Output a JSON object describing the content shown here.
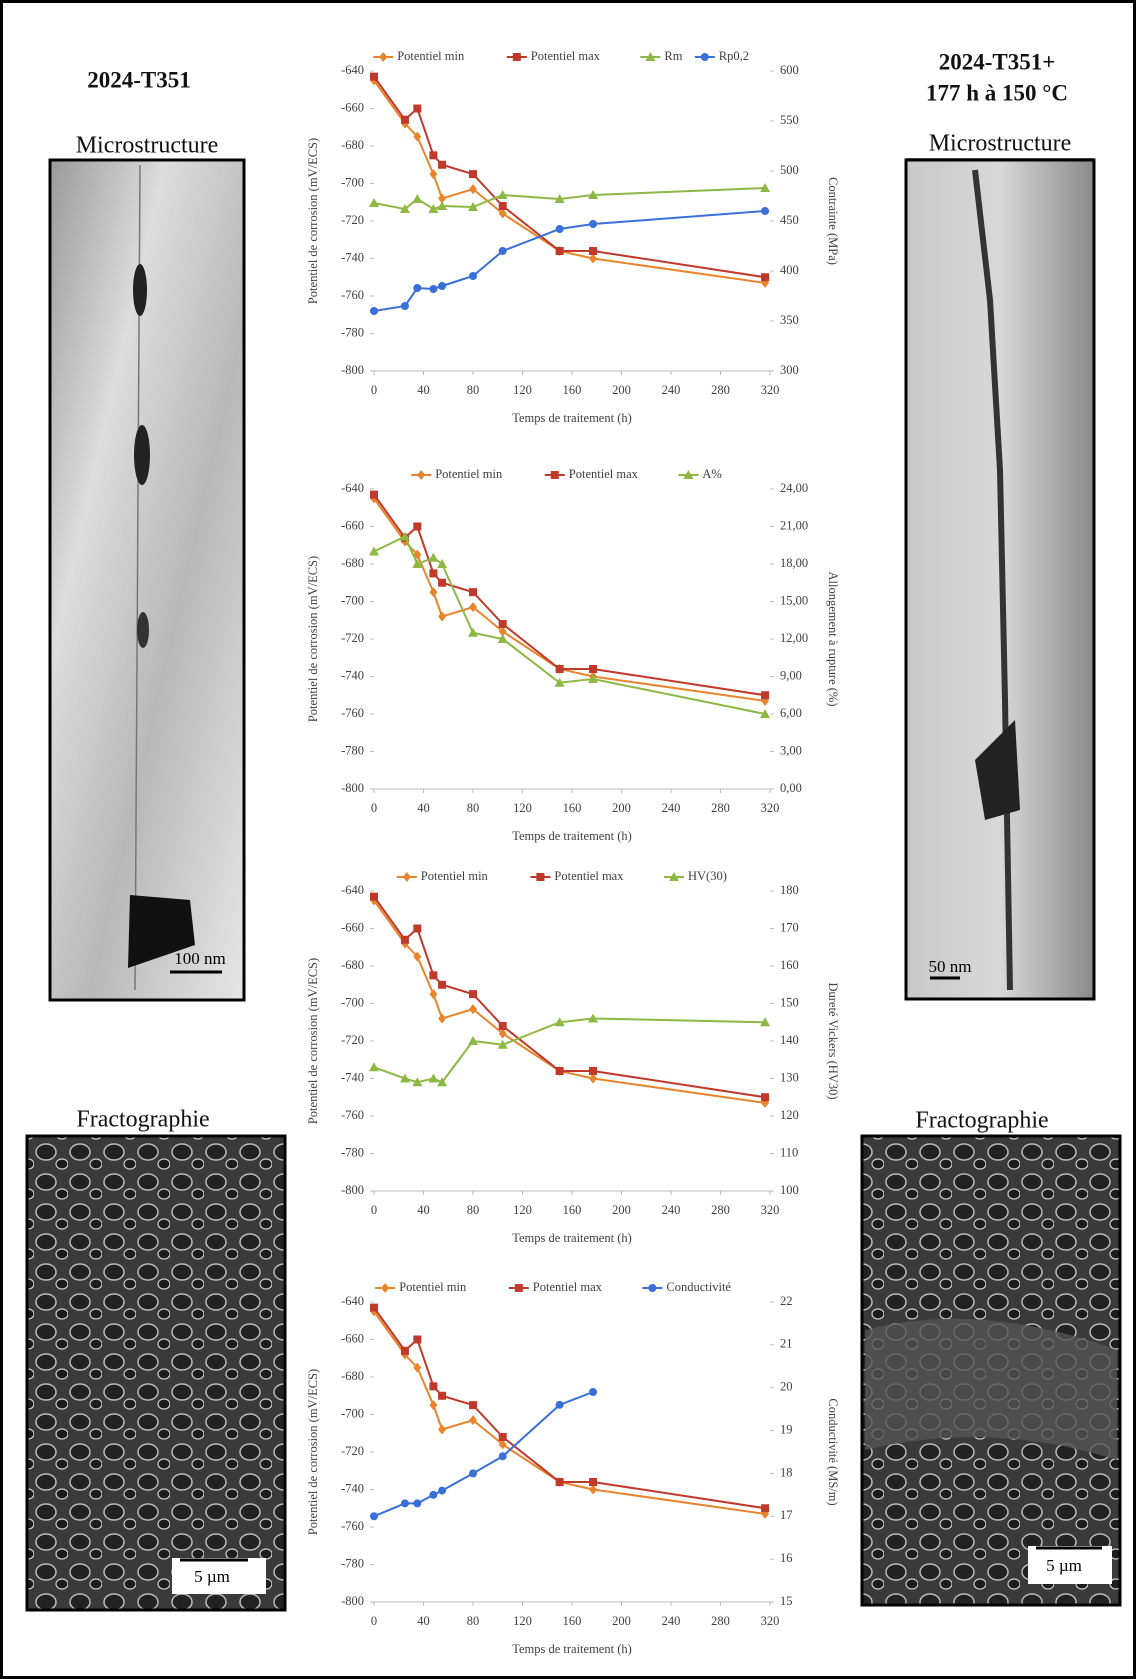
{
  "panels": {
    "left": {
      "title": "2024-T351",
      "microstructure": "Microstructure",
      "micro_scale": "100 nm",
      "fractography": "Fractographie",
      "frac_scale": "5 µm"
    },
    "right": {
      "title": "2024-T351+",
      "subtitle": "177 h à 150 °C",
      "microstructure": "Microstructure",
      "micro_scale": "50 nm",
      "fractography": "Fractographie",
      "frac_scale": "5 µm"
    }
  },
  "chart_data": [
    {
      "type": "line",
      "xlabel": "Temps de traitement (h)",
      "ylabel": "Potentiel de corrosion (mV/ECS)",
      "y2label": "Contrainte (MPa)",
      "x": [
        0,
        25,
        35,
        48,
        55,
        80,
        104,
        150,
        177,
        316
      ],
      "xlim": [
        0,
        320
      ],
      "xticks": [
        0,
        40,
        80,
        120,
        160,
        200,
        240,
        280,
        320
      ],
      "ylim": [
        -800,
        -640
      ],
      "yticks": [
        -800,
        -780,
        -760,
        -740,
        -720,
        -700,
        -680,
        -660,
        -640
      ],
      "y2lim": [
        300,
        600
      ],
      "y2ticks": [
        300,
        350,
        400,
        450,
        500,
        550,
        600
      ],
      "series": [
        {
          "name": "Potentiel min",
          "color": "#e8842c",
          "marker": "diamond",
          "values": [
            -645,
            -668,
            -675,
            -695,
            -708,
            -703,
            -716,
            -736,
            -740,
            -753
          ]
        },
        {
          "name": "Potentiel max",
          "color": "#c0392b",
          "marker": "square",
          "values": [
            -643,
            -666,
            -660,
            -685,
            -690,
            -695,
            -712,
            -736,
            -736,
            -750
          ]
        },
        {
          "name": "Rm",
          "color": "#8db843",
          "marker": "triangle",
          "axis": "y2",
          "values": [
            468,
            462,
            472,
            462,
            465,
            464,
            476,
            472,
            476,
            483
          ]
        },
        {
          "name": "Rp0,2",
          "color": "#3a6fd8",
          "marker": "circle",
          "axis": "y2",
          "values": [
            360,
            365,
            383,
            382,
            385,
            395,
            420,
            442,
            447,
            460
          ]
        }
      ]
    },
    {
      "type": "line",
      "xlabel": "Temps de traitement (h)",
      "ylabel": "Potentiel de corrosion (mV/ECS)",
      "y2label": "Allongement à rupture (%)",
      "x": [
        0,
        25,
        35,
        48,
        55,
        80,
        104,
        150,
        177,
        316
      ],
      "xlim": [
        0,
        320
      ],
      "xticks": [
        0,
        40,
        80,
        120,
        160,
        200,
        240,
        280,
        320
      ],
      "ylim": [
        -800,
        -640
      ],
      "yticks": [
        -800,
        -780,
        -760,
        -740,
        -720,
        -700,
        -680,
        -660,
        -640
      ],
      "y2lim": [
        0,
        24
      ],
      "y2ticks": [
        {
          "value": 0,
          "label": "0,00"
        },
        {
          "value": 3,
          "label": "3,00"
        },
        {
          "value": 6,
          "label": "6,00"
        },
        {
          "value": 9,
          "label": "9,00"
        },
        {
          "value": 12,
          "label": "12,00"
        },
        {
          "value": 15,
          "label": "15,00"
        },
        {
          "value": 18,
          "label": "18,00"
        },
        {
          "value": 21,
          "label": "21,00"
        },
        {
          "value": 24,
          "label": "24,00"
        }
      ],
      "series": [
        {
          "name": "Potentiel min",
          "color": "#e8842c",
          "marker": "diamond",
          "values": [
            -645,
            -668,
            -675,
            -695,
            -708,
            -703,
            -716,
            -736,
            -740,
            -753
          ]
        },
        {
          "name": "Potentiel max",
          "color": "#c0392b",
          "marker": "square",
          "values": [
            -643,
            -666,
            -660,
            -685,
            -690,
            -695,
            -712,
            -736,
            -736,
            -750
          ]
        },
        {
          "name": "A%",
          "color": "#8db843",
          "marker": "triangle",
          "axis": "y2",
          "values": [
            19,
            20.2,
            18,
            18.5,
            18,
            12.5,
            12,
            8.5,
            8.8,
            6
          ]
        }
      ]
    },
    {
      "type": "line",
      "xlabel": "Temps de traitement (h)",
      "ylabel": "Potentiel de corrosion (mV/ECS)",
      "y2label": "Dureté Vickers (HV30)",
      "x": [
        0,
        25,
        35,
        48,
        55,
        80,
        104,
        150,
        177,
        316
      ],
      "xlim": [
        0,
        320
      ],
      "xticks": [
        0,
        40,
        80,
        120,
        160,
        200,
        240,
        280,
        320
      ],
      "ylim": [
        -800,
        -640
      ],
      "yticks": [
        -800,
        -780,
        -760,
        -740,
        -720,
        -700,
        -680,
        -660,
        -640
      ],
      "y2lim": [
        100,
        180
      ],
      "y2ticks": [
        100,
        110,
        120,
        130,
        140,
        150,
        160,
        170,
        180
      ],
      "series": [
        {
          "name": "Potentiel min",
          "color": "#e8842c",
          "marker": "diamond",
          "values": [
            -645,
            -668,
            -675,
            -695,
            -708,
            -703,
            -716,
            -736,
            -740,
            -753
          ]
        },
        {
          "name": "Potentiel max",
          "color": "#c0392b",
          "marker": "square",
          "values": [
            -643,
            -666,
            -660,
            -685,
            -690,
            -695,
            -712,
            -736,
            -736,
            -750
          ]
        },
        {
          "name": "HV(30)",
          "color": "#8db843",
          "marker": "triangle",
          "axis": "y2",
          "values": [
            133,
            130,
            129,
            130,
            129,
            140,
            139,
            145,
            146,
            145
          ]
        }
      ]
    },
    {
      "type": "line",
      "xlabel": "Temps de traitement (h)",
      "ylabel": "Potentiel de corrosion (mV/ECS)",
      "y2label": "Conductivité (MS/m)",
      "x": [
        0,
        25,
        35,
        48,
        55,
        80,
        104,
        150,
        177,
        316
      ],
      "xlim": [
        0,
        320
      ],
      "xticks": [
        0,
        40,
        80,
        120,
        160,
        200,
        240,
        280,
        320
      ],
      "ylim": [
        -800,
        -640
      ],
      "yticks": [
        -800,
        -780,
        -760,
        -740,
        -720,
        -700,
        -680,
        -660,
        -640
      ],
      "y2lim": [
        15,
        22
      ],
      "y2ticks": [
        15,
        16,
        17,
        18,
        19,
        20,
        21,
        22
      ],
      "series": [
        {
          "name": "Potentiel min",
          "color": "#e8842c",
          "marker": "diamond",
          "values": [
            -645,
            -668,
            -675,
            -695,
            -708,
            -703,
            -716,
            -736,
            -740,
            -753
          ]
        },
        {
          "name": "Potentiel max",
          "color": "#c0392b",
          "marker": "square",
          "values": [
            -643,
            -666,
            -660,
            -685,
            -690,
            -695,
            -712,
            -736,
            -736,
            -750
          ]
        },
        {
          "name": "Conductivité",
          "color": "#3a6fd8",
          "marker": "circle",
          "axis": "y2",
          "values": [
            17,
            17.3,
            17.3,
            17.5,
            17.6,
            18,
            18.4,
            19.6,
            19.9,
            null
          ]
        }
      ]
    }
  ]
}
